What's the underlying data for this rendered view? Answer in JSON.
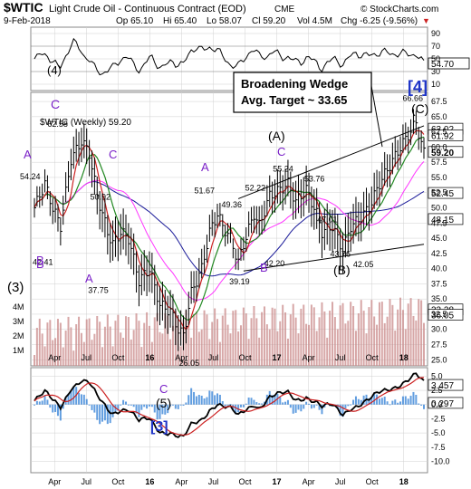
{
  "header": {
    "symbol": "$WTIC",
    "name": "Light Crude Oil - Continuous Contract (EOD)",
    "exchange": "CME",
    "watermark": "© StockCharts.com",
    "date": "9-Feb-2018",
    "open": "Op 65.10",
    "high": "Hi 65.40",
    "low": "Lo 58.07",
    "close": "Cl 59.20",
    "volume": "Vol 4.5M",
    "change": "Chg -6.25 (-9.56%)",
    "change_marker": "▼"
  },
  "rsi_panel": {
    "label": "(4)",
    "wave_label": "C",
    "last_value": "54.70",
    "y_ticks": [
      "90",
      "70",
      "50",
      "30",
      "10"
    ],
    "upper_level": 70,
    "lower_level": 30
  },
  "price_panel": {
    "legend": "$WTIC (Weekly) 59.20",
    "annotation_box": {
      "line1": "Broadening Wedge",
      "line2": "Avg. Target ~ 33.65"
    },
    "y_ticks": [
      "67.5",
      "65.0",
      "62.5",
      "60.0",
      "57.5",
      "55.0",
      "52.5",
      "50.0",
      "47.5",
      "45.0",
      "42.5",
      "40.0",
      "37.5",
      "35.0",
      "32.5",
      "30.0",
      "27.5",
      "25.0"
    ],
    "volume_ticks": [
      "4M",
      "3M",
      "2M",
      "1M"
    ],
    "price_tags": [
      {
        "value": "63.02",
        "color": "#ffffff"
      },
      {
        "value": "61.92",
        "color": "#ffffff"
      },
      {
        "value": "59.20",
        "color": "#ffffff"
      },
      {
        "value": "52.45",
        "color": "#ffffff"
      },
      {
        "value": "48.15",
        "color": "#ffffff"
      },
      {
        "value": "33.28",
        "color": "#ffffff"
      },
      {
        "value": "36.05",
        "color": "#ffffff"
      }
    ],
    "price_labels": [
      "62.58",
      "54.24",
      "50.92",
      "42.41",
      "37.75",
      "26.05",
      "51.67",
      "49.36",
      "52.22",
      "55.24",
      "53.76",
      "47.01",
      "43.76",
      "42.05",
      "42.20",
      "39.19",
      "66.66"
    ],
    "wave_labels": [
      "A",
      "B",
      "C",
      "(3)",
      "A",
      "B",
      "A",
      "B",
      "C",
      "(A)",
      "(B)",
      "(C)",
      "[4]",
      "C"
    ]
  },
  "macd_panel": {
    "wave_label": "(5)",
    "degree_label": "[3]",
    "macd_value": "3.457",
    "signal_value": "0.297",
    "y_ticks": [
      "5.0",
      "2.5",
      "0.0",
      "-2.5",
      "-5.0",
      "-7.5",
      "-10.0"
    ]
  },
  "x_axis": {
    "labels": [
      "Apr",
      "Jul",
      "Oct",
      "16",
      "Apr",
      "Jul",
      "Oct",
      "17",
      "Apr",
      "Jul",
      "Oct",
      "18"
    ]
  },
  "colors": {
    "price": "#000000",
    "ma_fast": "#cc2222",
    "ma_mid": "#228822",
    "ma_slow": "#ff33ff",
    "ma_long": "#1a1a99",
    "wave": "#7b22c8",
    "degree": "#1f35c8",
    "volume": "#c98a8a",
    "histogram": "#3b86d8",
    "grid": "#d0d0d0"
  },
  "chart_data": {
    "type": "line",
    "title": "$WTIC Light Crude Oil - Continuous Contract (EOD)",
    "x": [
      "2015-04",
      "2015-07",
      "2015-10",
      "2016-01",
      "2016-04",
      "2016-07",
      "2016-10",
      "2017-01",
      "2017-04",
      "2017-07",
      "2017-10",
      "2018-01",
      "2018-02-09"
    ],
    "series": [
      {
        "name": "$WTIC (Weekly)",
        "values": [
          49.5,
          59.0,
          46.5,
          33.0,
          40.0,
          46.0,
          50.0,
          53.5,
          50.5,
          45.0,
          51.5,
          63.5,
          59.2
        ]
      }
    ],
    "ylim": [
      24,
      69
    ],
    "grid": true,
    "labeled_points": [
      {
        "label": "62.58",
        "value": 62.58
      },
      {
        "label": "54.24",
        "value": 54.24
      },
      {
        "label": "50.92",
        "value": 50.92
      },
      {
        "label": "42.41",
        "value": 42.41
      },
      {
        "label": "37.75",
        "value": 37.75
      },
      {
        "label": "26.05",
        "value": 26.05
      },
      {
        "label": "51.67",
        "value": 51.67
      },
      {
        "label": "49.36",
        "value": 49.36
      },
      {
        "label": "52.22",
        "value": 52.22
      },
      {
        "label": "55.24",
        "value": 55.24
      },
      {
        "label": "53.76",
        "value": 53.76
      },
      {
        "label": "47.01",
        "value": 47.01
      },
      {
        "label": "43.76",
        "value": 43.76
      },
      {
        "label": "42.05",
        "value": 42.05
      },
      {
        "label": "42.20",
        "value": 42.2
      },
      {
        "label": "39.19",
        "value": 39.19
      },
      {
        "label": "66.66",
        "value": 66.66
      }
    ]
  }
}
